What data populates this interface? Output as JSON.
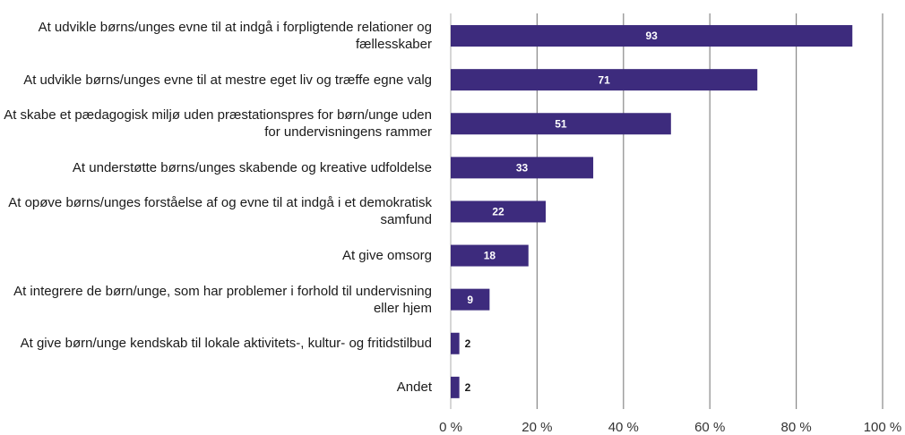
{
  "chart_data": {
    "type": "barh",
    "categories": [
      "At udvikle børns/unges evne til at indgå i forpligtende relationer og fællesskaber",
      "At udvikle børns/unges evne til at mestre eget liv og træffe egne valg",
      "At skabe et pædagogisk miljø uden præstationspres for børn/unge uden for undervisningens rammer",
      "At understøtte børns/unges skabende og kreative udfoldelse",
      "At opøve børns/unges forståelse af og evne til at indgå i et demokratisk samfund",
      "At give omsorg",
      "At integrere de børn/unge, som har problemer i forhold til undervisning eller hjem",
      "At give børn/unge kendskab til lokale aktivitets-, kultur- og fritidstilbud",
      "Andet"
    ],
    "values": [
      93,
      71,
      51,
      33,
      22,
      18,
      9,
      2,
      2
    ],
    "color": "#3d2b7d",
    "xlim": [
      0,
      100
    ],
    "xticks": [
      {
        "value": 0,
        "label": "0 %"
      },
      {
        "value": 20,
        "label": "20 %"
      },
      {
        "value": 40,
        "label": "40 %"
      },
      {
        "value": 60,
        "label": "60 %"
      },
      {
        "value": 80,
        "label": "80 %"
      },
      {
        "value": 100,
        "label": "100 %"
      }
    ],
    "grid": true
  }
}
